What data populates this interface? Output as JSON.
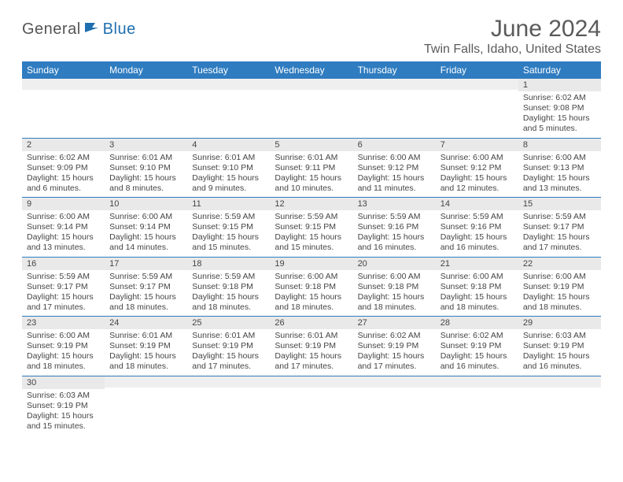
{
  "logo": {
    "part1": "General",
    "part2": "Blue"
  },
  "title": "June 2024",
  "location": "Twin Falls, Idaho, United States",
  "colors": {
    "header_bg": "#2f7cc0",
    "header_text": "#ffffff",
    "daynum_bg": "#e9e9e9",
    "border": "#2f7cc0",
    "text": "#454545",
    "title_text": "#5a5a5a",
    "logo_gray": "#555555",
    "logo_blue": "#1f6fb0"
  },
  "weekdays": [
    "Sunday",
    "Monday",
    "Tuesday",
    "Wednesday",
    "Thursday",
    "Friday",
    "Saturday"
  ],
  "weeks": [
    [
      null,
      null,
      null,
      null,
      null,
      null,
      {
        "n": "1",
        "sr": "6:02 AM",
        "ss": "9:08 PM",
        "dl": "15 hours and 5 minutes."
      }
    ],
    [
      {
        "n": "2",
        "sr": "6:02 AM",
        "ss": "9:09 PM",
        "dl": "15 hours and 6 minutes."
      },
      {
        "n": "3",
        "sr": "6:01 AM",
        "ss": "9:10 PM",
        "dl": "15 hours and 8 minutes."
      },
      {
        "n": "4",
        "sr": "6:01 AM",
        "ss": "9:10 PM",
        "dl": "15 hours and 9 minutes."
      },
      {
        "n": "5",
        "sr": "6:01 AM",
        "ss": "9:11 PM",
        "dl": "15 hours and 10 minutes."
      },
      {
        "n": "6",
        "sr": "6:00 AM",
        "ss": "9:12 PM",
        "dl": "15 hours and 11 minutes."
      },
      {
        "n": "7",
        "sr": "6:00 AM",
        "ss": "9:12 PM",
        "dl": "15 hours and 12 minutes."
      },
      {
        "n": "8",
        "sr": "6:00 AM",
        "ss": "9:13 PM",
        "dl": "15 hours and 13 minutes."
      }
    ],
    [
      {
        "n": "9",
        "sr": "6:00 AM",
        "ss": "9:14 PM",
        "dl": "15 hours and 13 minutes."
      },
      {
        "n": "10",
        "sr": "6:00 AM",
        "ss": "9:14 PM",
        "dl": "15 hours and 14 minutes."
      },
      {
        "n": "11",
        "sr": "5:59 AM",
        "ss": "9:15 PM",
        "dl": "15 hours and 15 minutes."
      },
      {
        "n": "12",
        "sr": "5:59 AM",
        "ss": "9:15 PM",
        "dl": "15 hours and 15 minutes."
      },
      {
        "n": "13",
        "sr": "5:59 AM",
        "ss": "9:16 PM",
        "dl": "15 hours and 16 minutes."
      },
      {
        "n": "14",
        "sr": "5:59 AM",
        "ss": "9:16 PM",
        "dl": "15 hours and 16 minutes."
      },
      {
        "n": "15",
        "sr": "5:59 AM",
        "ss": "9:17 PM",
        "dl": "15 hours and 17 minutes."
      }
    ],
    [
      {
        "n": "16",
        "sr": "5:59 AM",
        "ss": "9:17 PM",
        "dl": "15 hours and 17 minutes."
      },
      {
        "n": "17",
        "sr": "5:59 AM",
        "ss": "9:17 PM",
        "dl": "15 hours and 18 minutes."
      },
      {
        "n": "18",
        "sr": "5:59 AM",
        "ss": "9:18 PM",
        "dl": "15 hours and 18 minutes."
      },
      {
        "n": "19",
        "sr": "6:00 AM",
        "ss": "9:18 PM",
        "dl": "15 hours and 18 minutes."
      },
      {
        "n": "20",
        "sr": "6:00 AM",
        "ss": "9:18 PM",
        "dl": "15 hours and 18 minutes."
      },
      {
        "n": "21",
        "sr": "6:00 AM",
        "ss": "9:18 PM",
        "dl": "15 hours and 18 minutes."
      },
      {
        "n": "22",
        "sr": "6:00 AM",
        "ss": "9:19 PM",
        "dl": "15 hours and 18 minutes."
      }
    ],
    [
      {
        "n": "23",
        "sr": "6:00 AM",
        "ss": "9:19 PM",
        "dl": "15 hours and 18 minutes."
      },
      {
        "n": "24",
        "sr": "6:01 AM",
        "ss": "9:19 PM",
        "dl": "15 hours and 18 minutes."
      },
      {
        "n": "25",
        "sr": "6:01 AM",
        "ss": "9:19 PM",
        "dl": "15 hours and 17 minutes."
      },
      {
        "n": "26",
        "sr": "6:01 AM",
        "ss": "9:19 PM",
        "dl": "15 hours and 17 minutes."
      },
      {
        "n": "27",
        "sr": "6:02 AM",
        "ss": "9:19 PM",
        "dl": "15 hours and 17 minutes."
      },
      {
        "n": "28",
        "sr": "6:02 AM",
        "ss": "9:19 PM",
        "dl": "15 hours and 16 minutes."
      },
      {
        "n": "29",
        "sr": "6:03 AM",
        "ss": "9:19 PM",
        "dl": "15 hours and 16 minutes."
      }
    ],
    [
      {
        "n": "30",
        "sr": "6:03 AM",
        "ss": "9:19 PM",
        "dl": "15 hours and 15 minutes."
      },
      null,
      null,
      null,
      null,
      null,
      null
    ]
  ],
  "labels": {
    "sunrise": "Sunrise: ",
    "sunset": "Sunset: ",
    "daylight": "Daylight: "
  }
}
